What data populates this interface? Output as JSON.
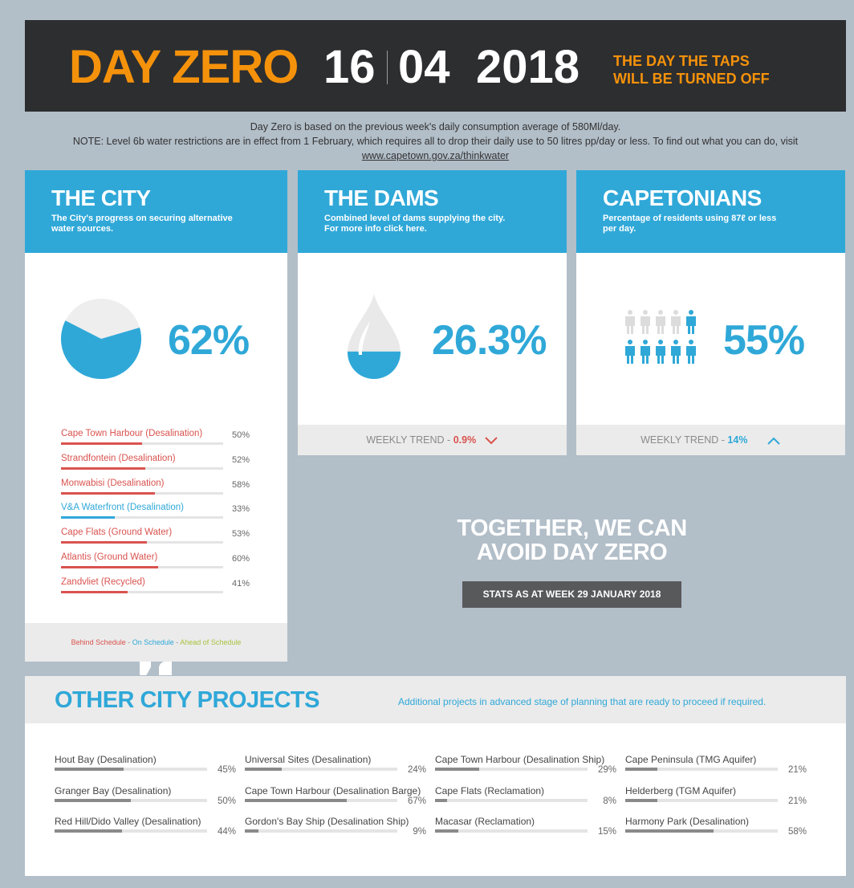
{
  "banner": {
    "title": "DAY ZERO",
    "day": "16",
    "month": "04",
    "year": "2018",
    "subtitle_line1": "THE DAY THE TAPS",
    "subtitle_line2": "WILL BE TURNED OFF"
  },
  "note": {
    "line1": "Day Zero is based on the previous week's daily consumption average of 580Ml/day.",
    "line2": "NOTE: Level 6b water restrictions are in effect from 1 February, which requires all to drop their daily use to 50 litres pp/day or less. To find out what you can do, visit",
    "link": "www.capetown.gov.za/thinkwater"
  },
  "city": {
    "title": "THE CITY",
    "desc": "The City's progress on securing alternative water sources.",
    "percent": 62,
    "percent_label": "62%",
    "projects": [
      {
        "label": "Cape Town Harbour (Desalination)",
        "value": 50,
        "pct": "50%",
        "status": "behind"
      },
      {
        "label": "Strandfontein (Desalination)",
        "value": 52,
        "pct": "52%",
        "status": "behind"
      },
      {
        "label": "Monwabisi (Desalination)",
        "value": 58,
        "pct": "58%",
        "status": "behind"
      },
      {
        "label": "V&A Waterfront (Desalination)",
        "value": 33,
        "pct": "33%",
        "status": "on"
      },
      {
        "label": "Cape Flats (Ground Water)",
        "value": 53,
        "pct": "53%",
        "status": "behind"
      },
      {
        "label": "Atlantis (Ground Water)",
        "value": 60,
        "pct": "60%",
        "status": "behind"
      },
      {
        "label": "Zandvliet (Recycled)",
        "value": 41,
        "pct": "41%",
        "status": "behind"
      }
    ],
    "legend": {
      "behind": "Behind Schedule",
      "sep1": " - ",
      "on": "On Schedule",
      "sep2": " - ",
      "ahead": "Ahead of Schedule"
    }
  },
  "dams": {
    "title": "THE DAMS",
    "desc_line1": "Combined level of dams supplying the city.",
    "desc_line2": "For more info click here.",
    "percent": 26.3,
    "percent_label": "26.3%",
    "trend_label": "WEEKLY TREND - ",
    "trend_value": "0.9%",
    "trend_direction": "down"
  },
  "capetonians": {
    "title": "CAPETONIANS",
    "desc": "Percentage of residents using 87ℓ or less per day.",
    "percent": 55,
    "percent_label": "55%",
    "trend_label": "WEEKLY TREND - ",
    "trend_value": "14%",
    "trend_direction": "up"
  },
  "together": {
    "line1": "TOGETHER, WE CAN",
    "line2": "AVOID DAY ZERO",
    "stats_button": "STATS AS AT WEEK 29 JANUARY 2018"
  },
  "other": {
    "title": "OTHER CITY PROJECTS",
    "desc": "Additional projects in advanced stage of planning that are ready to proceed if required.",
    "projects": [
      {
        "label": "Hout Bay (Desalination)",
        "value": 45,
        "pct": "45%"
      },
      {
        "label": "Granger Bay (Desalination)",
        "value": 50,
        "pct": "50%"
      },
      {
        "label": "Red Hill/Dido Valley (Desalination)",
        "value": 44,
        "pct": "44%"
      },
      {
        "label": "Universal Sites (Desalination)",
        "value": 24,
        "pct": "24%"
      },
      {
        "label": "Cape Town Harbour (Desalination Barge)",
        "value": 67,
        "pct": "67%"
      },
      {
        "label": "Gordon's Bay Ship (Desalination Ship)",
        "value": 9,
        "pct": "9%"
      },
      {
        "label": "Cape Town Harbour (Desalination Ship)",
        "value": 29,
        "pct": "29%"
      },
      {
        "label": "Cape Flats (Reclamation)",
        "value": 8,
        "pct": "8%"
      },
      {
        "label": "Macasar (Reclamation)",
        "value": 15,
        "pct": "15%"
      },
      {
        "label": "Cape Peninsula (TMG Aquifer)",
        "value": 21,
        "pct": "21%"
      },
      {
        "label": "Helderberg (TGM Aquifer)",
        "value": 21,
        "pct": "21%"
      },
      {
        "label": "Harmony Park (Desalination)",
        "value": 58,
        "pct": "58%"
      }
    ]
  },
  "colors": {
    "accent_blue": "#2fa8d8",
    "orange": "#f5920b",
    "behind_red": "#d9534f",
    "on_blue": "#2fa8d8",
    "ahead_green": "#a9c23f"
  },
  "icons": {
    "water_drop": "water-drop-icon",
    "people": "person-icon",
    "trend_down": "chevron-down-icon",
    "trend_up": "chevron-up-icon"
  }
}
